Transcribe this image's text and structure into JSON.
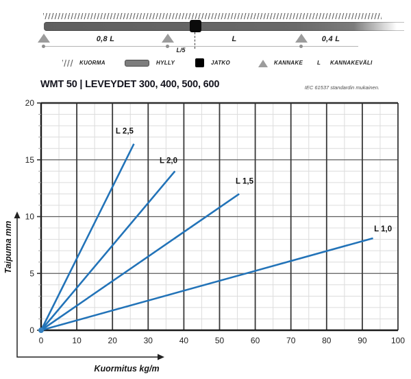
{
  "header": {
    "title": "WMT 50 | LEVEYDET 300, 400, 500, 600",
    "standard_note": "IEC 61537 standardin mukainen."
  },
  "schematic": {
    "span_labels": {
      "left": "0,8 L",
      "middle": "L",
      "right": "0,4 L",
      "joint_offset": "L/5"
    },
    "legend": [
      {
        "icon": "hatch-icon",
        "label": "KUORMA"
      },
      {
        "icon": "beam-icon",
        "label": "HYLLY"
      },
      {
        "icon": "joint-icon",
        "label": "JATKO"
      },
      {
        "icon": "triangle-icon",
        "label": "KANNAKE"
      },
      {
        "icon": "letter-l",
        "symbol": "L",
        "label": "KANNAKEVÄLI"
      }
    ]
  },
  "chart_data": {
    "type": "line",
    "title": "",
    "xlabel": "Kuormitus kg/m",
    "ylabel": "Taipuma mm",
    "xlim": [
      0,
      100
    ],
    "ylim": [
      0,
      20
    ],
    "x_major_ticks": [
      0,
      10,
      20,
      30,
      40,
      50,
      60,
      70,
      80,
      90,
      100
    ],
    "y_major_ticks": [
      0,
      5,
      10,
      15,
      20
    ],
    "x_minor_step": 5,
    "y_minor_step": 1,
    "grid": "on",
    "series": [
      {
        "name": "L 2,5",
        "x": [
          0,
          26
        ],
        "y": [
          0,
          16.4
        ],
        "label_at": [
          23.4,
          17.3
        ]
      },
      {
        "name": "L 2,0",
        "x": [
          0,
          37.5
        ],
        "y": [
          0,
          14.0
        ],
        "label_at": [
          35.7,
          14.7
        ]
      },
      {
        "name": "L 1,5",
        "x": [
          0,
          55.5
        ],
        "y": [
          0,
          12.0
        ],
        "label_at": [
          57.0,
          12.9
        ]
      },
      {
        "name": "L 1,0",
        "x": [
          0,
          93
        ],
        "y": [
          0,
          8.1
        ],
        "label_at": [
          95.8,
          8.7
        ]
      }
    ],
    "line_color": "#2273b8",
    "origin_dot_color": "#3581c1",
    "colors": {
      "major_v_grid": "#383838",
      "major_h_grid": "#5c5c5c",
      "minor_grid": "#dcdcdc",
      "axis": "#1a1a1a",
      "tick_label": "#1f1f1f"
    }
  }
}
